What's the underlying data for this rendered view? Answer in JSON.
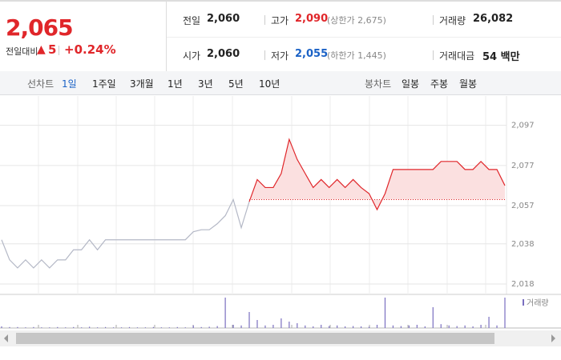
{
  "quote": {
    "price": "2,065",
    "change_label": "전일대비",
    "change_sign": "▲",
    "change": "5",
    "change_pct": "+0.24%"
  },
  "summary": [
    {
      "label": "전일",
      "value": "2,060"
    },
    {
      "label": "고가",
      "value": "2,090",
      "note": "(상한가 2,675)"
    },
    {
      "label": "거래량",
      "value": "26,082"
    },
    {
      "label": "시가",
      "value": "2,060"
    },
    {
      "label": "저가",
      "value": "2,055",
      "note": "(하한가 1,445)"
    },
    {
      "label": "거래대금",
      "value": "54 백만"
    }
  ],
  "tabs": {
    "line_label": "선차트",
    "line": [
      "1일",
      "1주일",
      "3개월",
      "1년",
      "3년",
      "5년",
      "10년"
    ],
    "candle_label": "봉차트",
    "candle": [
      "일봉",
      "주봉",
      "월봉"
    ]
  },
  "chart_data": {
    "type": "line",
    "ylim": [
      2015,
      2108
    ],
    "yticks": [
      {
        "value": 2097,
        "label": "2,097"
      },
      {
        "value": 2077,
        "label": "2,077"
      },
      {
        "value": 2057,
        "label": "2,057"
      },
      {
        "value": 2038,
        "label": "2,038"
      },
      {
        "value": 2018,
        "label": "2,018"
      }
    ],
    "reference_line": 2060,
    "series": [
      {
        "color": "#b4b8c6",
        "values": [
          2040,
          2030,
          2026,
          2030,
          2026,
          2030,
          2026,
          2030,
          2030,
          2035,
          2035,
          2040,
          2035,
          2040,
          2040,
          2040,
          2040,
          2040,
          2040,
          2040,
          2040,
          2040,
          2040,
          2040,
          2044,
          2045,
          2045,
          2048,
          2052,
          2060,
          2046,
          2059,
          null,
          null,
          null,
          null,
          null,
          null,
          null,
          null,
          null,
          null,
          null,
          null,
          null,
          null,
          null,
          null,
          null,
          null,
          null,
          null,
          null,
          null,
          null,
          null,
          null,
          null,
          null,
          null,
          null,
          null,
          null,
          null
        ]
      },
      {
        "color": "#e0262a",
        "values": [
          null,
          null,
          null,
          null,
          null,
          null,
          null,
          null,
          null,
          null,
          null,
          null,
          null,
          null,
          null,
          null,
          null,
          null,
          null,
          null,
          null,
          null,
          null,
          null,
          null,
          null,
          null,
          null,
          null,
          null,
          null,
          2059,
          2070,
          2066,
          2066,
          2073,
          2090,
          2080,
          2073,
          2066,
          2070,
          2066,
          2070,
          2066,
          2070,
          2066,
          2063,
          2055,
          2063,
          2075,
          2075,
          2075,
          2075,
          2075,
          2075,
          2079,
          2079,
          2079,
          2075,
          2075,
          2079,
          2075,
          2075,
          2067
        ]
      }
    ],
    "volume_label": "거래량",
    "volume_color": "#7a6fc0",
    "volume_lim": [
      0,
      100
    ],
    "volume": [
      5,
      3,
      3,
      2,
      3,
      2,
      2,
      3,
      2,
      3,
      2,
      4,
      2,
      3,
      2,
      2,
      3,
      2,
      2,
      3,
      2,
      2,
      3,
      2,
      8,
      3,
      4,
      6,
      95,
      10,
      8,
      50,
      25,
      8,
      10,
      30,
      20,
      15,
      8,
      5,
      10,
      6,
      8,
      5,
      6,
      5,
      4,
      10,
      95,
      8,
      6,
      8,
      10,
      5,
      65,
      12,
      8,
      6,
      8,
      5,
      10,
      35,
      8,
      95
    ]
  }
}
